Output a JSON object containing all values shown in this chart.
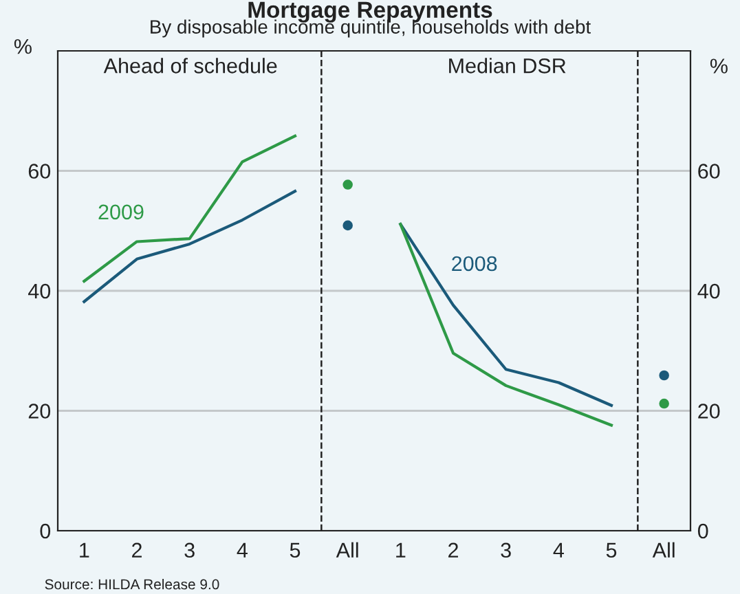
{
  "chart_data": [
    {
      "type": "line",
      "title": "Mortgage Repayments",
      "subtitle": "By disposable income quintile, households with debt",
      "annotations": [
        "Ahead of schedule"
      ],
      "ylabel": "%",
      "x": [
        1,
        2,
        3,
        4,
        5,
        6
      ],
      "xlim": [
        0.5,
        6.5
      ],
      "xticks": [
        1,
        2,
        3,
        4,
        5,
        {
          "value": 6,
          "label": "All"
        }
      ],
      "ylim": [
        0,
        80
      ],
      "yticks": [
        0,
        20,
        40,
        60
      ],
      "grid": "y",
      "legend": false,
      "marker": "none",
      "line_style": "solid",
      "ref_lines": [
        {
          "axis": "x",
          "value": 5.5,
          "color": "#222222",
          "line_style": "dashed"
        }
      ],
      "series": [
        {
          "color": "#1b5a7a",
          "values": [
            38.2,
            45.3,
            47.8,
            51.8,
            56.6,
            null
          ]
        },
        {
          "name": "2009",
          "color": "#2e9a47",
          "values": [
            41.6,
            48.2,
            48.7,
            61.5,
            65.8,
            null
          ]
        },
        {
          "type": "scatter",
          "marker": "circle",
          "color": "#1b5a7a",
          "values": [
            null,
            null,
            null,
            null,
            null,
            50.9
          ]
        },
        {
          "type": "scatter",
          "marker": "circle",
          "color": "#2e9a47",
          "values": [
            null,
            null,
            null,
            null,
            null,
            57.7
          ]
        }
      ]
    },
    {
      "type": "line",
      "annotations": [
        "Median DSR",
        "Source: HILDA Release 9.0"
      ],
      "ylabel": "%",
      "x": [
        1,
        2,
        3,
        4,
        5,
        6
      ],
      "xlim": [
        0.5,
        6.5
      ],
      "xticks": [
        1,
        2,
        3,
        4,
        5,
        {
          "value": 6,
          "label": "All"
        }
      ],
      "ylim": [
        0,
        80
      ],
      "yticks": [
        0,
        20,
        40,
        60
      ],
      "grid": "y",
      "legend": false,
      "marker": "none",
      "line_style": "solid",
      "ref_lines": [
        {
          "axis": "x",
          "value": 5.5,
          "color": "#222222",
          "line_style": "dashed"
        }
      ],
      "series": [
        {
          "name": "2008",
          "color": "#1b5a7a",
          "values": [
            51.1,
            37.6,
            26.9,
            24.7,
            20.9,
            null
          ]
        },
        {
          "color": "#2e9a47",
          "values": [
            51.1,
            29.6,
            24.2,
            21.0,
            17.6,
            null
          ]
        },
        {
          "type": "scatter",
          "marker": "circle",
          "color": "#1b5a7a",
          "values": [
            null,
            null,
            null,
            null,
            null,
            25.9
          ]
        },
        {
          "type": "scatter",
          "marker": "circle",
          "color": "#2e9a47",
          "values": [
            null,
            null,
            null,
            null,
            null,
            21.2
          ]
        }
      ]
    }
  ]
}
